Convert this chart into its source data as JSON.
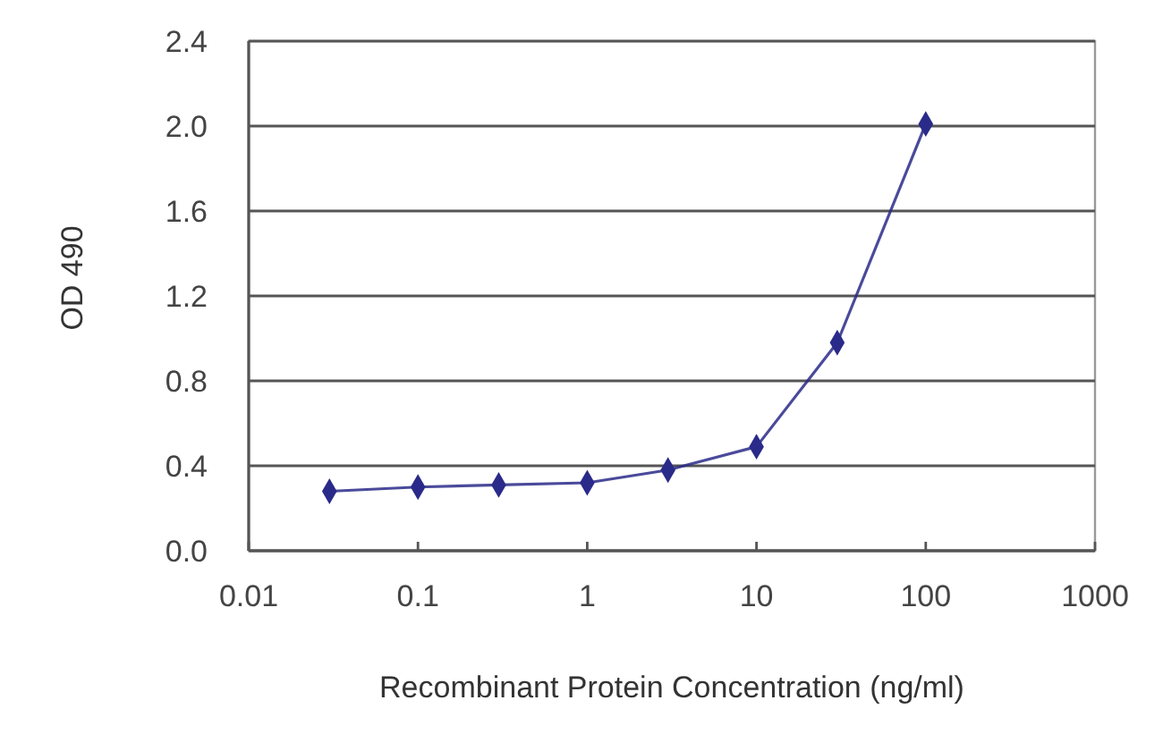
{
  "chart_data": {
    "type": "line",
    "xlabel": "Recombinant Protein Concentration (ng/ml)",
    "ylabel": "OD 490",
    "x": [
      0.03,
      0.1,
      0.3,
      1,
      3,
      10,
      30,
      100
    ],
    "series": [
      {
        "color": "#2a2a8a",
        "values": [
          0.28,
          0.3,
          0.31,
          0.32,
          0.38,
          0.49,
          0.98,
          2.01
        ]
      }
    ],
    "log": "x",
    "xlim": [
      0.01,
      1000
    ],
    "xticks": [
      0.01,
      0.1,
      1,
      10,
      100,
      1000
    ],
    "ylim": [
      0,
      2.4
    ],
    "yticks": [
      {
        "value": 0,
        "label": "0.0"
      },
      0.4,
      0.8,
      1.2,
      1.6,
      {
        "value": 2,
        "label": "2.0"
      },
      2.4
    ],
    "grid": "y",
    "marker": "diamond",
    "line_style": "solid"
  }
}
